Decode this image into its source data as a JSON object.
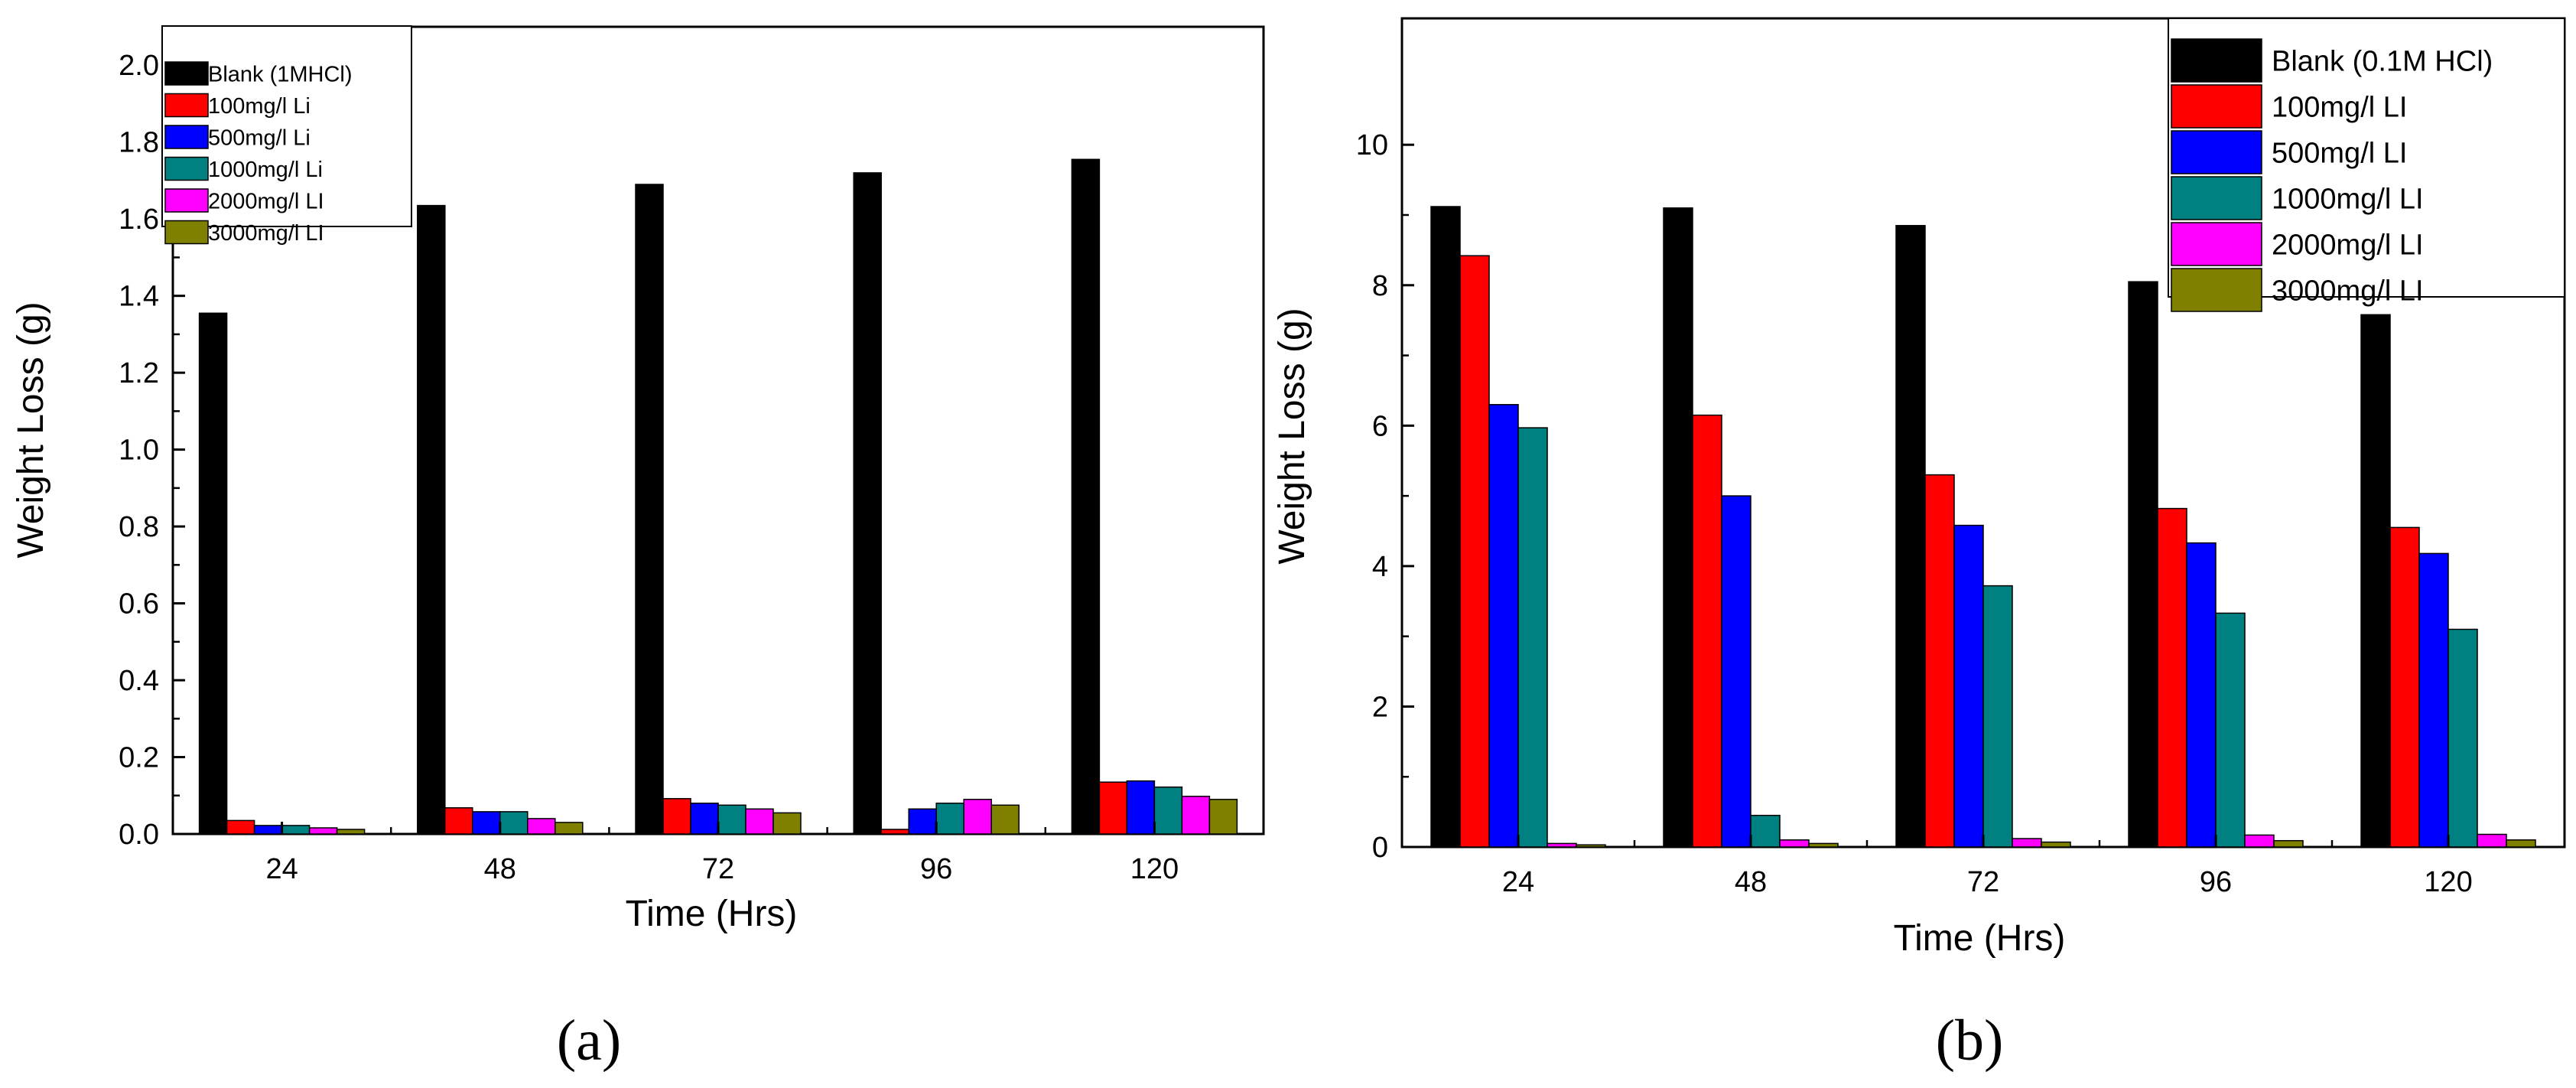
{
  "chart_data": [
    {
      "type": "bar",
      "panel_label": "(a)",
      "title": "",
      "xlabel": "Time (Hrs)",
      "ylabel": "Weight Loss (g)",
      "categories": [
        "24",
        "48",
        "72",
        "96",
        "120"
      ],
      "ylim": [
        0,
        2.1
      ],
      "yticks": [
        "0.0",
        "0.2",
        "0.4",
        "0.6",
        "0.8",
        "1.0",
        "1.2",
        "1.4",
        "1.6",
        "1.8",
        "2.0"
      ],
      "ytick_values": [
        0,
        0.2,
        0.4,
        0.6,
        0.8,
        1.0,
        1.2,
        1.4,
        1.6,
        1.8,
        2.0
      ],
      "grid": false,
      "legend_position": "top-left",
      "series": [
        {
          "name": "Blank (1MHCl)",
          "color": "#000000",
          "values": [
            1.355,
            1.635,
            1.69,
            1.72,
            1.755
          ]
        },
        {
          "name": "100mg/l Li",
          "color": "#ff0000",
          "values": [
            0.035,
            0.068,
            0.092,
            0.012,
            0.135
          ]
        },
        {
          "name": "500mg/l Li",
          "color": "#0000ff",
          "values": [
            0.022,
            0.058,
            0.08,
            0.065,
            0.138
          ]
        },
        {
          "name": "1000mg/l Li",
          "color": "#008080",
          "values": [
            0.022,
            0.058,
            0.075,
            0.08,
            0.122
          ]
        },
        {
          "name": "2000mg/l LI",
          "color": "#ff00ff",
          "values": [
            0.016,
            0.04,
            0.065,
            0.09,
            0.098
          ]
        },
        {
          "name": "3000mg/l LI",
          "color": "#808000",
          "values": [
            0.012,
            0.03,
            0.055,
            0.075,
            0.09
          ]
        }
      ]
    },
    {
      "type": "bar",
      "panel_label": "(b)",
      "title": "",
      "xlabel": "Time (Hrs)",
      "ylabel": "Weight Loss (g)",
      "categories": [
        "24",
        "48",
        "72",
        "96",
        "120"
      ],
      "ylim": [
        0,
        11.8
      ],
      "yticks": [
        "0",
        "2",
        "4",
        "6",
        "8",
        "10"
      ],
      "ytick_values": [
        0,
        2,
        4,
        6,
        8,
        10
      ],
      "grid": false,
      "legend_position": "top-right",
      "series": [
        {
          "name": "Blank (0.1M HCl)",
          "color": "#000000",
          "values": [
            9.12,
            9.1,
            8.85,
            8.05,
            7.58
          ]
        },
        {
          "name": "100mg/l LI",
          "color": "#ff0000",
          "values": [
            8.42,
            6.15,
            5.3,
            4.82,
            4.55
          ]
        },
        {
          "name": "500mg/l LI",
          "color": "#0000ff",
          "values": [
            6.3,
            5.0,
            4.58,
            4.33,
            4.18
          ]
        },
        {
          "name": "1000mg/l LI",
          "color": "#008080",
          "values": [
            5.97,
            0.45,
            3.72,
            3.33,
            3.1
          ]
        },
        {
          "name": "2000mg/l LI",
          "color": "#ff00ff",
          "values": [
            0.05,
            0.1,
            0.12,
            0.17,
            0.18
          ]
        },
        {
          "name": "3000mg/l LI",
          "color": "#808000",
          "values": [
            0.03,
            0.05,
            0.07,
            0.09,
            0.1
          ]
        }
      ]
    }
  ]
}
